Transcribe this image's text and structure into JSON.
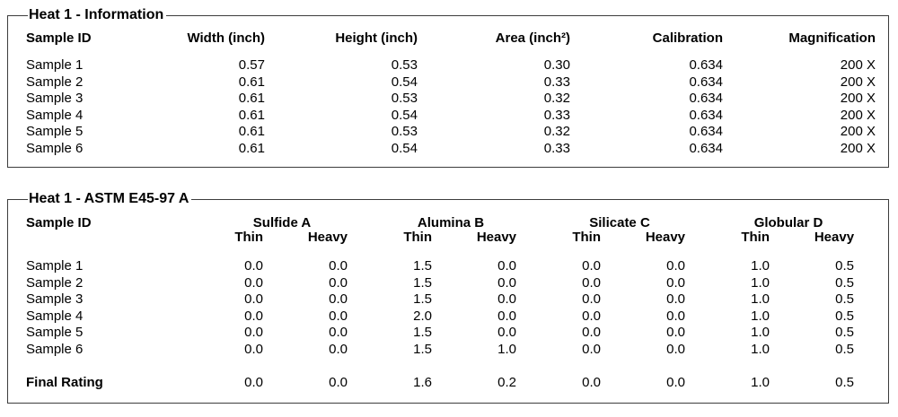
{
  "colors": {
    "background": "#ffffff",
    "text": "#000000",
    "border": "#3c3c3c"
  },
  "info": {
    "title": "Heat 1 - Information",
    "columns": [
      "Sample ID",
      "Width (inch)",
      "Height (inch)",
      "Area (inch²)",
      "Calibration",
      "Magnification"
    ],
    "rows": [
      [
        "Sample 1",
        "0.57",
        "0.53",
        "0.30",
        "0.634",
        "200 X"
      ],
      [
        "Sample 2",
        "0.61",
        "0.54",
        "0.33",
        "0.634",
        "200 X"
      ],
      [
        "Sample 3",
        "0.61",
        "0.53",
        "0.32",
        "0.634",
        "200 X"
      ],
      [
        "Sample 4",
        "0.61",
        "0.54",
        "0.33",
        "0.634",
        "200 X"
      ],
      [
        "Sample 5",
        "0.61",
        "0.53",
        "0.32",
        "0.634",
        "200 X"
      ],
      [
        "Sample 6",
        "0.61",
        "0.54",
        "0.33",
        "0.634",
        "200 X"
      ]
    ]
  },
  "astm": {
    "title": "Heat 1 - ASTM E45-97 A",
    "sample_id_header": "Sample ID",
    "groups": [
      "Sulfide A",
      "Alumina B",
      "Silicate C",
      "Globular D"
    ],
    "subheaders": [
      "Thin",
      "Heavy"
    ],
    "rows": [
      [
        "Sample 1",
        "0.0",
        "0.0",
        "1.5",
        "0.0",
        "0.0",
        "0.0",
        "1.0",
        "0.5"
      ],
      [
        "Sample 2",
        "0.0",
        "0.0",
        "1.5",
        "0.0",
        "0.0",
        "0.0",
        "1.0",
        "0.5"
      ],
      [
        "Sample 3",
        "0.0",
        "0.0",
        "1.5",
        "0.0",
        "0.0",
        "0.0",
        "1.0",
        "0.5"
      ],
      [
        "Sample 4",
        "0.0",
        "0.0",
        "2.0",
        "0.0",
        "0.0",
        "0.0",
        "1.0",
        "0.5"
      ],
      [
        "Sample 5",
        "0.0",
        "0.0",
        "1.5",
        "0.0",
        "0.0",
        "0.0",
        "1.0",
        "0.5"
      ],
      [
        "Sample 6",
        "0.0",
        "0.0",
        "1.5",
        "1.0",
        "0.0",
        "0.0",
        "1.0",
        "0.5"
      ]
    ],
    "final": [
      "Final Rating",
      "0.0",
      "0.0",
      "1.6",
      "0.2",
      "0.0",
      "0.0",
      "1.0",
      "0.5"
    ]
  }
}
